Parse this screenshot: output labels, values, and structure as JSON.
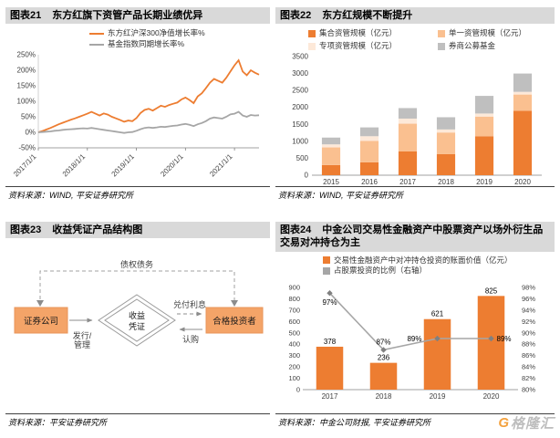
{
  "watermark": {
    "icon_letter": "G",
    "text": "格隆汇"
  },
  "panels": {
    "p21": {
      "tag": "图表21",
      "title": "东方红旗下资管产品长期业绩优异",
      "source": "资料来源：WIND, 平安证券研究所",
      "chart_data": {
        "type": "line",
        "title": "东方红旗下资管产品长期业绩优异",
        "ylim": [
          -50,
          250
        ],
        "y_ticks": [
          250,
          200,
          150,
          100,
          50,
          0,
          -50
        ],
        "y_suffix": "%",
        "x_tick_labels": [
          "2017/1/1",
          "2018/1/1",
          "2019/1/1",
          "2020/1/1",
          "2021/1/1"
        ],
        "x_tick_indices": [
          0,
          12,
          24,
          36,
          48
        ],
        "grid": false,
        "legend_position": "top",
        "series": [
          {
            "name": "东方红沪深300净值增长率%",
            "color": "#ED7D31",
            "values": [
              0,
              4,
              9,
              14,
              20,
              26,
              31,
              36,
              41,
              45,
              50,
              55,
              60,
              66,
              60,
              54,
              61,
              57,
              50,
              45,
              40,
              34,
              38,
              36,
              46,
              62,
              72,
              76,
              70,
              78,
              86,
              82,
              88,
              92,
              96,
              106,
              112,
              104,
              94,
              116,
              126,
              142,
              160,
              172,
              166,
              160,
              176,
              196,
              216,
              232,
              196,
              184,
              200,
              192,
              186
            ]
          },
          {
            "name": "基金指数同期增长率%",
            "color": "#A6A6A6",
            "values": [
              0,
              1,
              2,
              3,
              5,
              6,
              8,
              9,
              10,
              11,
              12,
              13,
              12,
              14,
              12,
              10,
              8,
              6,
              4,
              2,
              0,
              -2,
              0,
              1,
              5,
              10,
              14,
              16,
              14,
              16,
              18,
              17,
              19,
              21,
              22,
              25,
              27,
              24,
              20,
              26,
              30,
              36,
              44,
              48,
              46,
              44,
              50,
              58,
              60,
              66,
              54,
              50,
              56,
              54,
              55
            ]
          }
        ]
      }
    },
    "p22": {
      "tag": "图表22",
      "title": "东方红规模不断提升",
      "source": "资料来源：WIND, 平安证券研究所",
      "chart_data": {
        "type": "stacked_bar",
        "title": "东方红规模不断提升",
        "categories": [
          "2015",
          "2016",
          "2017",
          "2018",
          "2019",
          "2020"
        ],
        "ylim": [
          0,
          3500
        ],
        "y_ticks": [
          0,
          500,
          1000,
          1500,
          2000,
          2500,
          3000,
          3500
        ],
        "grid": false,
        "legend_position": "top",
        "series": [
          {
            "name": "集合资管规模（亿元）",
            "color": "#ED7D31",
            "values": [
              300,
              380,
              700,
              620,
              1150,
              1900
            ]
          },
          {
            "name": "单一资管规模（亿元）",
            "color": "#FAC090",
            "values": [
              520,
              630,
              820,
              640,
              580,
              480
            ]
          },
          {
            "name": "专项资管规模（亿元）",
            "color": "#FDE9D9",
            "values": [
              90,
              140,
              150,
              90,
              90,
              80
            ]
          },
          {
            "name": "券商公募基金",
            "color": "#BFBFBF",
            "values": [
              200,
              260,
              310,
              360,
              520,
              540
            ]
          }
        ]
      }
    },
    "p23": {
      "tag": "图表23",
      "title": "收益凭证产品结构图",
      "source": "资料来源：平安证券研究所",
      "diagram": {
        "issuer": "证券公司",
        "investor": "合格投资者",
        "certificate_line1": "收益",
        "certificate_line2": "凭证",
        "top_label": "债权债务",
        "issue_label_line1": "发行/",
        "issue_label_line2": "管理",
        "interest_label": "兑付利息",
        "subscribe_label": "认购"
      }
    },
    "p24": {
      "tag": "图表24",
      "title": "中金公司交易性金融资产中股票资产以场外衍生品交易对冲持仓为主",
      "source": "资料来源：中金公司财报, 平安证券研究所",
      "chart_data": {
        "type": "bar_line",
        "title": "中金公司交易性金融资产中对冲持仓",
        "categories": [
          "2017",
          "2018",
          "2019",
          "2020"
        ],
        "bar": {
          "name": "交易性金融资产中对冲持仓投资的账面价值（亿元）",
          "color": "#ED7D31",
          "values": [
            378,
            236,
            621,
            825
          ],
          "labels": [
            "378",
            "236",
            "621",
            "825"
          ]
        },
        "line": {
          "name": "占股票投资的比例（右轴）",
          "color": "#A6A6A6",
          "values": [
            97,
            87,
            89,
            89
          ],
          "labels": [
            "97%",
            "87%",
            "89%",
            "89%"
          ],
          "label_pos": [
            "below",
            "above",
            "left",
            "right"
          ]
        },
        "ylim_left": [
          0,
          900
        ],
        "y_ticks_left": [
          0,
          100,
          200,
          300,
          400,
          500,
          600,
          700,
          800,
          900
        ],
        "ylim_right": [
          80,
          98
        ],
        "y_ticks_right": [
          80,
          82,
          84,
          86,
          88,
          90,
          92,
          94,
          96,
          98
        ],
        "right_suffix": "%",
        "grid": false,
        "legend_position": "top"
      }
    }
  }
}
